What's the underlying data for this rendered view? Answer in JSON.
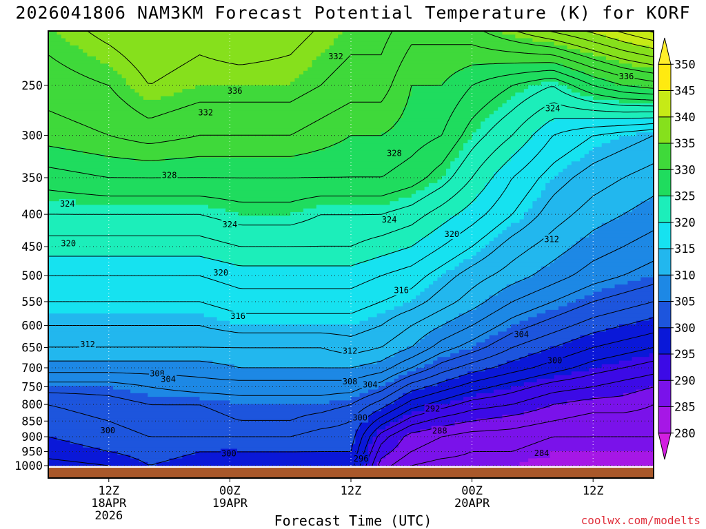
{
  "title": "2026041806 NAM3KM Forecast Potential Temperature (K) for KORF",
  "credit": "coolwx.com/modelts",
  "colors": {
    "ground": "#a9582a",
    "grid": "#222222"
  },
  "chart_data": {
    "type": "contour-filled time-height section",
    "xlabel": "Forecast Time (UTC)",
    "ylabel": "",
    "x_range_hours": [
      0,
      60
    ],
    "y_range_hpa": [
      1000,
      200
    ],
    "y_scale": "log-pressure",
    "y_ticks": [
      250,
      300,
      350,
      400,
      450,
      500,
      550,
      600,
      650,
      700,
      750,
      800,
      850,
      900,
      950,
      1000
    ],
    "x_ticks": [
      {
        "hour": 6,
        "lines": [
          "12Z",
          "18APR",
          "2026"
        ]
      },
      {
        "hour": 18,
        "lines": [
          "00Z",
          "19APR"
        ]
      },
      {
        "hour": 30,
        "lines": [
          "12Z"
        ]
      },
      {
        "hour": 42,
        "lines": [
          "00Z",
          "20APR"
        ]
      },
      {
        "hour": 54,
        "lines": [
          "12Z"
        ]
      }
    ],
    "colorbar": {
      "min": 275,
      "max": 355,
      "levels": [
        280,
        285,
        290,
        295,
        300,
        305,
        310,
        315,
        320,
        325,
        330,
        335,
        340,
        345,
        350
      ],
      "colors": [
        "#d21ee0",
        "#a617e6",
        "#7a12ea",
        "#3c0ae6",
        "#0a18d8",
        "#1d55dd",
        "#1d88e5",
        "#22b7ee",
        "#16e2f0",
        "#1ceeba",
        "#1fdc5e",
        "#3fd93a",
        "#86e01c",
        "#c6ea16",
        "#ffea10",
        "#ffee2a"
      ]
    },
    "hours": [
      0,
      6,
      10,
      15,
      19,
      24,
      27,
      30,
      33,
      36,
      39,
      42,
      46,
      50,
      54,
      57,
      60
    ],
    "theta_profiles": [
      {
        "hour": 0,
        "pressures": [
          1000,
          950,
          900,
          850,
          800,
          750,
          700,
          650,
          600,
          550,
          500,
          450,
          400,
          350,
          300,
          250,
          200
        ],
        "theta": [
          297,
          299,
          300,
          301,
          302,
          305,
          309,
          312,
          314,
          316,
          318,
          321,
          324,
          327,
          331,
          333,
          335
        ]
      },
      {
        "hour": 6,
        "pressures": [
          1000,
          950,
          900,
          850,
          800,
          750,
          700,
          650,
          600,
          550,
          500,
          450,
          400,
          350,
          300,
          250,
          200
        ],
        "theta": [
          298,
          300,
          301,
          302,
          303,
          305,
          309,
          312,
          314,
          316,
          318,
          321,
          324,
          328,
          332,
          334,
          337
        ]
      },
      {
        "hour": 10,
        "pressures": [
          1000,
          950,
          900,
          850,
          800,
          750,
          700,
          650,
          600,
          550,
          500,
          450,
          400,
          350,
          300,
          250,
          200
        ],
        "theta": [
          300,
          301,
          302,
          303,
          304,
          306,
          309,
          312,
          314,
          316,
          318,
          321,
          324,
          328,
          333,
          336,
          338
        ]
      },
      {
        "hour": 15,
        "pressures": [
          1000,
          950,
          900,
          850,
          800,
          750,
          700,
          650,
          600,
          550,
          500,
          450,
          400,
          350,
          300,
          250,
          200
        ],
        "theta": [
          299,
          300,
          302,
          303,
          304,
          307,
          309,
          312,
          314,
          316,
          318,
          321,
          324,
          328,
          332,
          335,
          337
        ]
      },
      {
        "hour": 19,
        "pressures": [
          1000,
          950,
          900,
          850,
          800,
          750,
          700,
          650,
          600,
          550,
          500,
          450,
          400,
          350,
          300,
          250,
          200
        ],
        "theta": [
          299,
          300,
          302,
          304,
          305,
          307,
          310,
          312,
          315,
          317,
          319,
          322,
          325,
          328,
          332,
          335,
          338
        ]
      },
      {
        "hour": 24,
        "pressures": [
          1000,
          950,
          900,
          850,
          800,
          750,
          700,
          650,
          600,
          550,
          500,
          450,
          400,
          350,
          300,
          250,
          200
        ],
        "theta": [
          299,
          300,
          302,
          304,
          305,
          307,
          310,
          312,
          315,
          317,
          319,
          322,
          325,
          328,
          332,
          335,
          337
        ]
      },
      {
        "hour": 27,
        "pressures": [
          1000,
          950,
          900,
          850,
          800,
          750,
          700,
          650,
          600,
          550,
          500,
          450,
          400,
          350,
          300,
          250,
          200
        ],
        "theta": [
          299,
          300,
          301,
          303,
          305,
          307,
          310,
          312,
          315,
          317,
          319,
          322,
          324,
          328,
          331,
          334,
          336
        ]
      },
      {
        "hour": 30,
        "pressures": [
          1000,
          950,
          900,
          850,
          800,
          750,
          700,
          650,
          600,
          550,
          500,
          450,
          400,
          350,
          300,
          250,
          200
        ],
        "theta": [
          299,
          300,
          301,
          302,
          304,
          307,
          310,
          313,
          315,
          317,
          319,
          322,
          324,
          328,
          330,
          333,
          335
        ]
      },
      {
        "hour": 33,
        "pressures": [
          1000,
          950,
          900,
          850,
          800,
          750,
          700,
          650,
          600,
          550,
          500,
          450,
          400,
          350,
          300,
          250,
          200
        ],
        "theta": [
          289,
          291,
          293,
          297,
          301,
          305,
          309,
          312,
          314,
          316,
          318,
          321,
          324,
          328,
          330,
          333,
          335
        ]
      },
      {
        "hour": 36,
        "pressures": [
          1000,
          950,
          900,
          850,
          800,
          750,
          700,
          650,
          600,
          550,
          500,
          450,
          400,
          350,
          300,
          250,
          200
        ],
        "theta": [
          286,
          288,
          289,
          293,
          297,
          301,
          306,
          310,
          312,
          315,
          317,
          320,
          323,
          327,
          329,
          330,
          333
        ]
      },
      {
        "hour": 39,
        "pressures": [
          1000,
          950,
          900,
          850,
          800,
          750,
          700,
          650,
          600,
          550,
          500,
          450,
          400,
          350,
          300,
          250,
          200
        ],
        "theta": [
          285,
          287,
          288,
          291,
          295,
          299,
          303,
          307,
          310,
          313,
          315,
          318,
          321,
          325,
          328,
          330,
          333
        ]
      },
      {
        "hour": 42,
        "pressures": [
          1000,
          950,
          900,
          850,
          800,
          750,
          700,
          650,
          600,
          550,
          500,
          450,
          400,
          350,
          300,
          250,
          200
        ],
        "theta": [
          285,
          286,
          287,
          290,
          293,
          297,
          301,
          305,
          308,
          311,
          313,
          316,
          319,
          322,
          325,
          328,
          334
        ]
      },
      {
        "hour": 46,
        "pressures": [
          1000,
          950,
          900,
          850,
          800,
          750,
          700,
          650,
          600,
          550,
          500,
          450,
          400,
          350,
          300,
          250,
          200
        ],
        "theta": [
          285,
          286,
          287,
          289,
          292,
          295,
          299,
          302,
          305,
          308,
          311,
          313,
          316,
          318,
          322,
          326,
          337
        ]
      },
      {
        "hour": 50,
        "pressures": [
          1000,
          950,
          900,
          850,
          800,
          750,
          700,
          650,
          600,
          550,
          500,
          450,
          400,
          350,
          300,
          250,
          200
        ],
        "theta": [
          284,
          285,
          286,
          288,
          290,
          293,
          297,
          300,
          303,
          306,
          309,
          311,
          313,
          315,
          318,
          324,
          340
        ]
      },
      {
        "hour": 54,
        "pressures": [
          1000,
          950,
          900,
          850,
          800,
          750,
          700,
          650,
          600,
          550,
          500,
          450,
          400,
          350,
          300,
          250,
          200
        ],
        "theta": [
          284,
          285,
          286,
          287,
          289,
          292,
          295,
          298,
          301,
          304,
          307,
          309,
          311,
          313,
          316,
          328,
          342
        ]
      },
      {
        "hour": 57,
        "pressures": [
          1000,
          950,
          900,
          850,
          800,
          750,
          700,
          650,
          600,
          550,
          500,
          450,
          400,
          350,
          300,
          250,
          200
        ],
        "theta": [
          284,
          285,
          286,
          287,
          289,
          291,
          294,
          297,
          300,
          303,
          306,
          308,
          310,
          312,
          315,
          330,
          344
        ]
      },
      {
        "hour": 60,
        "pressures": [
          1000,
          950,
          900,
          850,
          800,
          750,
          700,
          650,
          600,
          550,
          500,
          450,
          400,
          350,
          300,
          250,
          200
        ],
        "theta": [
          284,
          285,
          286,
          287,
          288,
          290,
          293,
          296,
          299,
          302,
          305,
          307,
          309,
          311,
          314,
          331,
          346
        ]
      }
    ],
    "contour_interval": 2,
    "contour_labels": [
      {
        "text": "332",
        "hour": 28.5,
        "p": 225
      },
      {
        "text": "336",
        "hour": 18.5,
        "p": 255
      },
      {
        "text": "332",
        "hour": 15.6,
        "p": 276
      },
      {
        "text": "336",
        "hour": 57.3,
        "p": 242
      },
      {
        "text": "324",
        "hour": 50.0,
        "p": 272
      },
      {
        "text": "328",
        "hour": 34.3,
        "p": 320
      },
      {
        "text": "328",
        "hour": 12.0,
        "p": 347
      },
      {
        "text": "324",
        "hour": 1.9,
        "p": 385
      },
      {
        "text": "324",
        "hour": 18.0,
        "p": 415
      },
      {
        "text": "324",
        "hour": 33.8,
        "p": 408
      },
      {
        "text": "320",
        "hour": 40.0,
        "p": 430
      },
      {
        "text": "312",
        "hour": 49.9,
        "p": 438
      },
      {
        "text": "320",
        "hour": 2.0,
        "p": 445
      },
      {
        "text": "320",
        "hour": 17.1,
        "p": 495
      },
      {
        "text": "316",
        "hour": 35.0,
        "p": 528
      },
      {
        "text": "316",
        "hour": 18.8,
        "p": 580
      },
      {
        "text": "304",
        "hour": 46.9,
        "p": 620
      },
      {
        "text": "312",
        "hour": 3.9,
        "p": 643
      },
      {
        "text": "312",
        "hour": 29.9,
        "p": 658
      },
      {
        "text": "300",
        "hour": 50.2,
        "p": 682
      },
      {
        "text": "308",
        "hour": 10.8,
        "p": 715
      },
      {
        "text": "304",
        "hour": 11.9,
        "p": 730
      },
      {
        "text": "308",
        "hour": 29.9,
        "p": 736
      },
      {
        "text": "304",
        "hour": 31.9,
        "p": 744
      },
      {
        "text": "292",
        "hour": 38.1,
        "p": 813
      },
      {
        "text": "300",
        "hour": 30.9,
        "p": 840
      },
      {
        "text": "288",
        "hour": 38.8,
        "p": 881
      },
      {
        "text": "300",
        "hour": 5.9,
        "p": 880
      },
      {
        "text": "300",
        "hour": 17.9,
        "p": 957
      },
      {
        "text": "284",
        "hour": 48.9,
        "p": 956
      },
      {
        "text": "296",
        "hour": 31.0,
        "p": 975
      }
    ]
  }
}
